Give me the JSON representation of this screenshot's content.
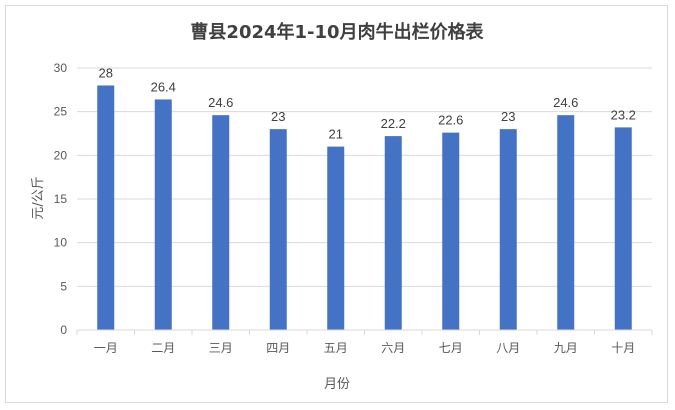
{
  "chart_data": {
    "type": "bar",
    "title": "曹县2024年1-10月肉牛出栏价格表",
    "xlabel": "月份",
    "ylabel": "元/公斤",
    "categories": [
      "一月",
      "二月",
      "三月",
      "四月",
      "五月",
      "六月",
      "七月",
      "八月",
      "九月",
      "十月"
    ],
    "values": [
      28,
      26.4,
      24.6,
      23,
      21,
      22.2,
      22.6,
      23,
      24.6,
      23.2
    ],
    "data_labels": [
      "28",
      "26.4",
      "24.6",
      "23",
      "21",
      "22.2",
      "22.6",
      "23",
      "24.6",
      "23.2"
    ],
    "ylim": [
      0,
      30
    ],
    "yticks": [
      0,
      5,
      10,
      15,
      20,
      25,
      30
    ],
    "grid": true,
    "legend": "none",
    "bar_color": "#4472C4"
  }
}
